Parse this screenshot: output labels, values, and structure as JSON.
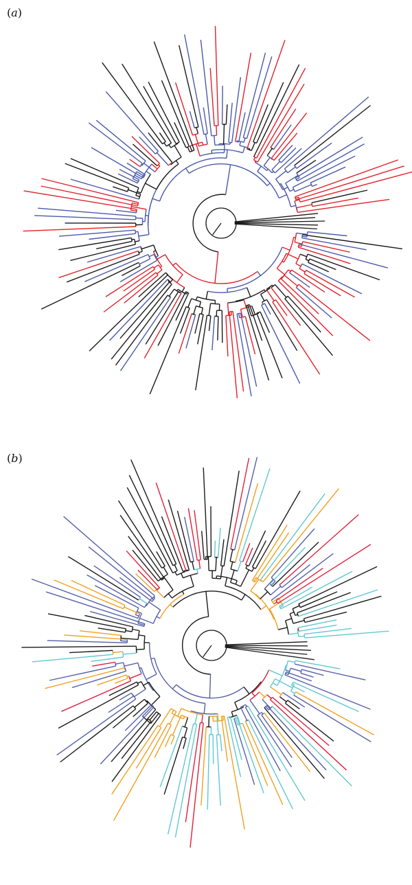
{
  "figure": {
    "panels": [
      {
        "id": "a",
        "label_open": "(",
        "label_letter": "a",
        "label_close": ")",
        "colors": [
          "#1a1a1a",
          "#e0202a",
          "#4a5aa8"
        ]
      },
      {
        "id": "b",
        "label_open": "(",
        "label_letter": "b",
        "label_close": ")",
        "colors": [
          "#1a1a1a",
          "#e0203a",
          "#5560a8",
          "#f0a020",
          "#60c8d0"
        ]
      }
    ]
  }
}
